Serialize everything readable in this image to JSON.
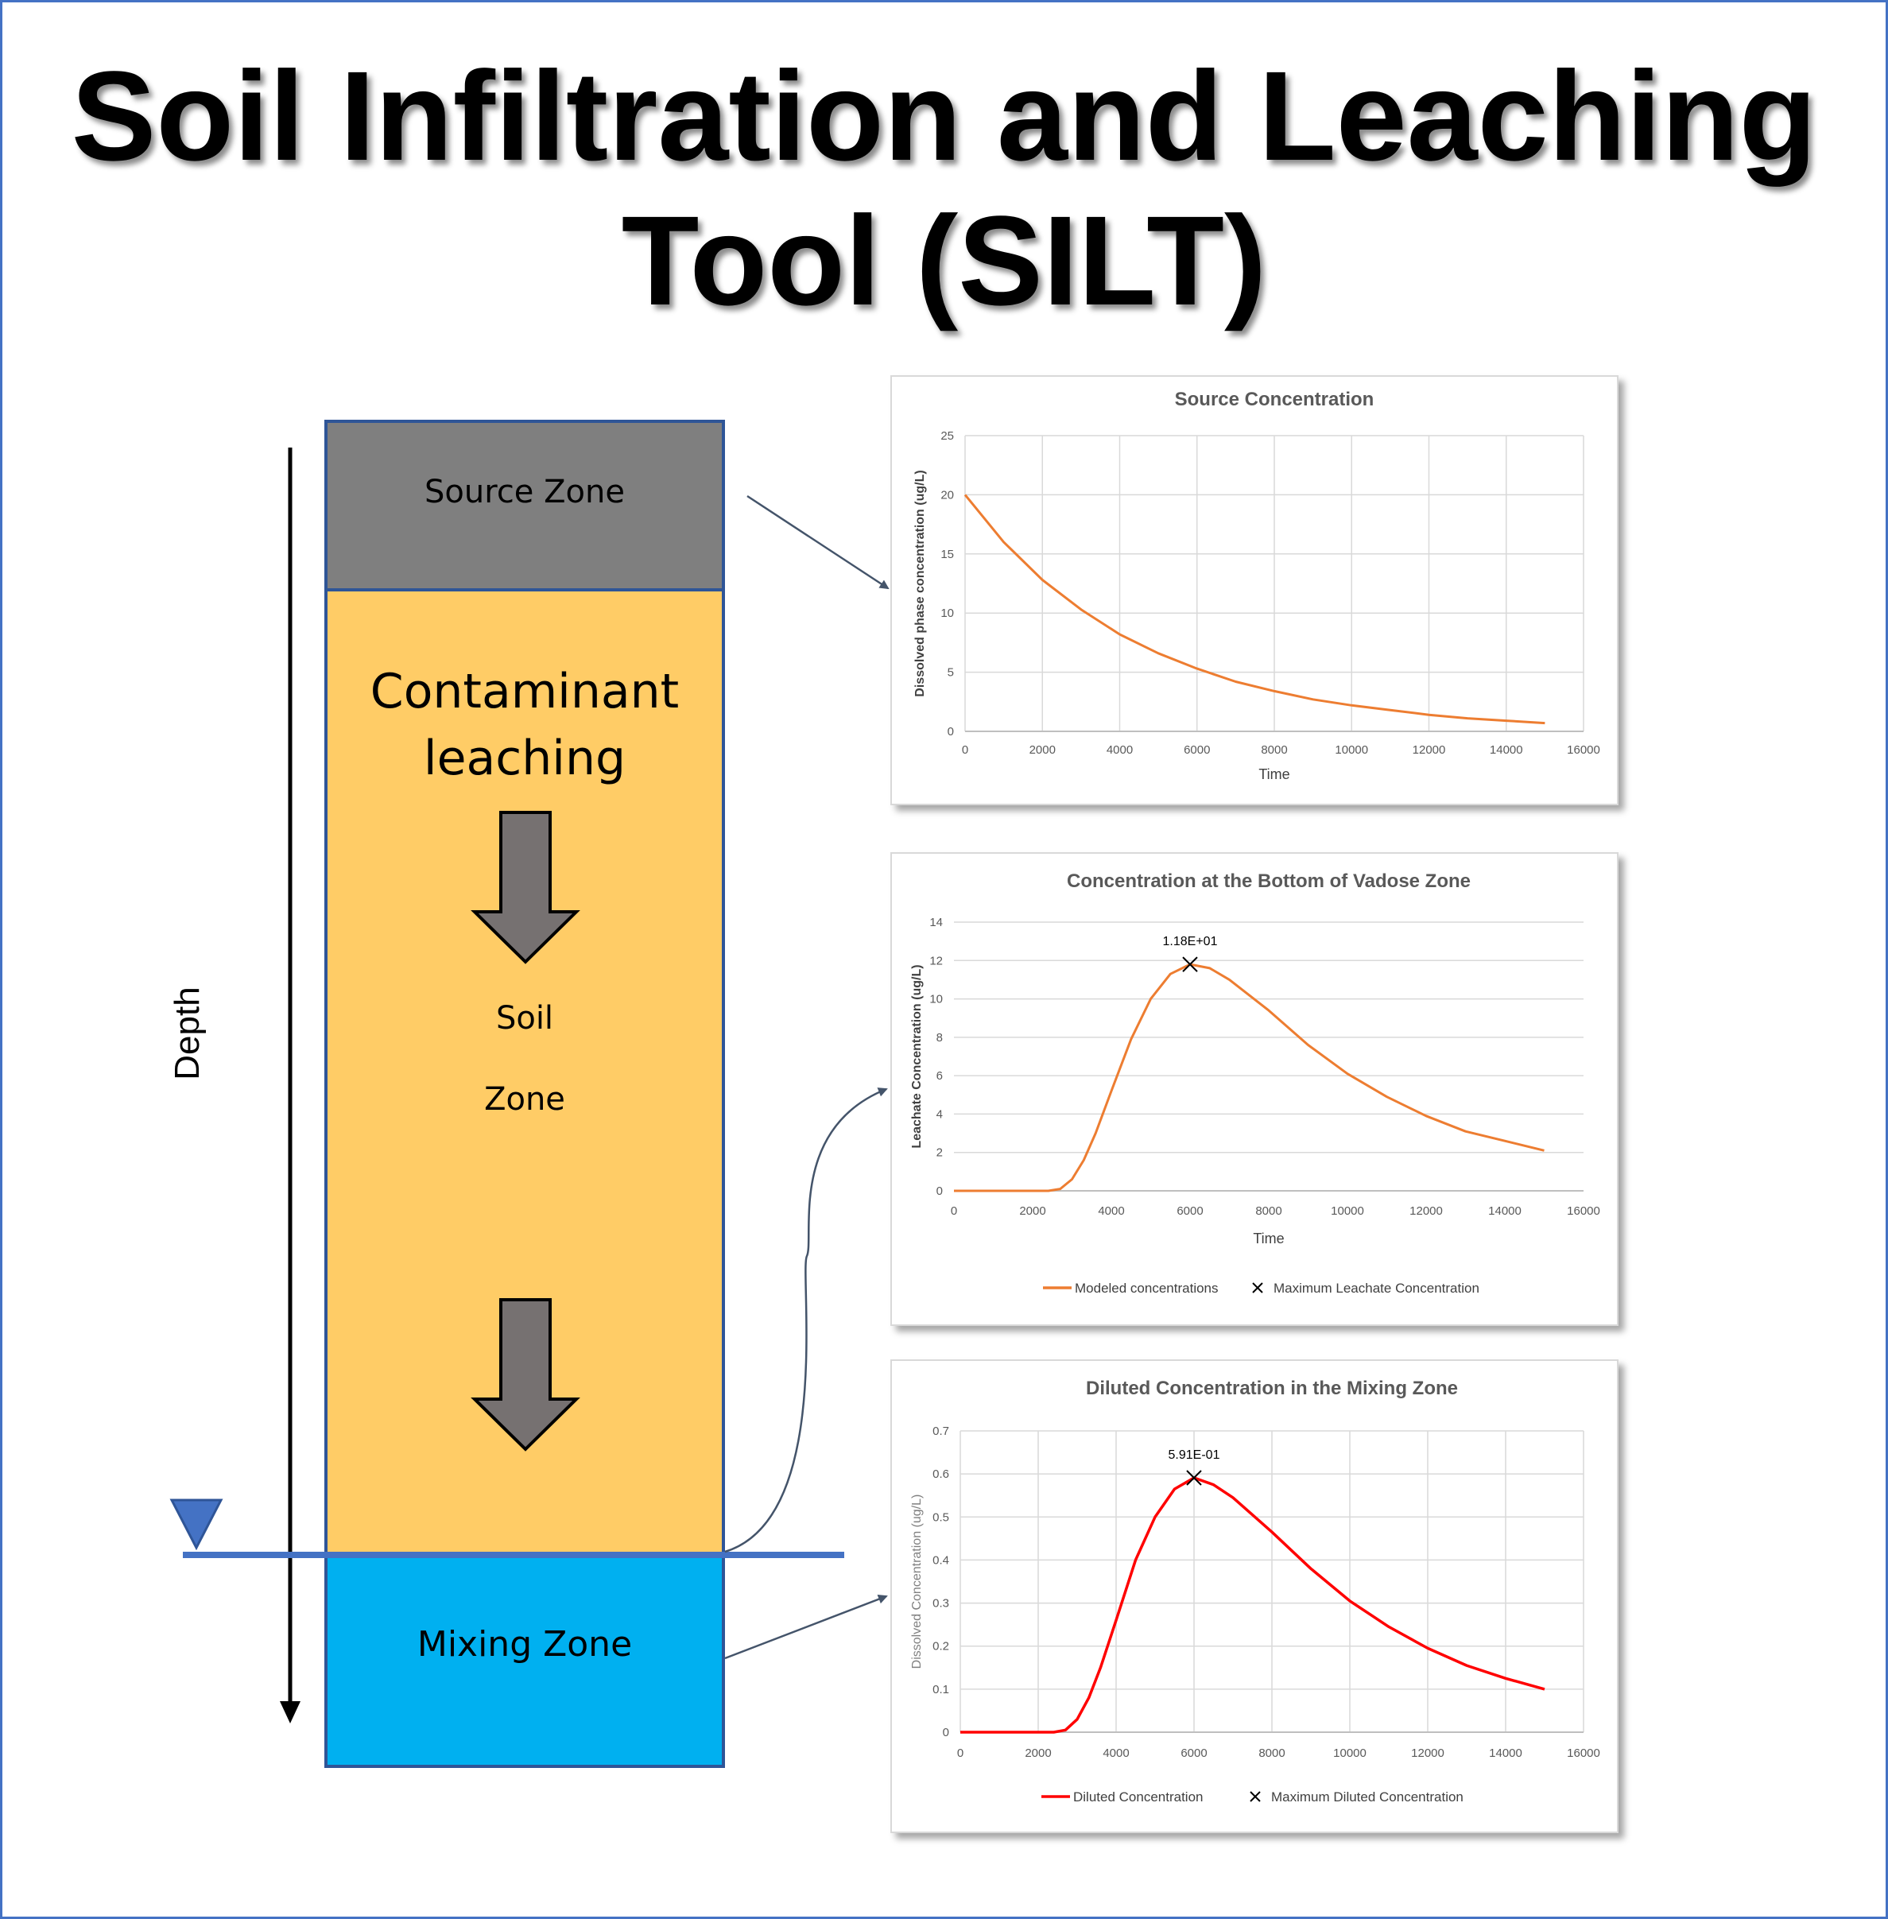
{
  "title": {
    "line1": "Soil Infiltration and Leaching",
    "line2": "Tool (SILT)"
  },
  "column": {
    "source_zone": "Source Zone",
    "leaching_line1": "Contaminant",
    "leaching_line2": "leaching",
    "soil_line1": "Soil",
    "soil_line2": "Zone",
    "mixing_zone": "Mixing Zone",
    "depth_label": "Depth"
  },
  "colors": {
    "source_zone": "#7f7f7f",
    "soil_zone": "#ffcc66",
    "mixing_zone": "#00b0f0",
    "zone_border": "#2f5597",
    "water_table": "#4472c4",
    "flow_arrow": "#767171",
    "orange_series": "#ed7d31",
    "red_series": "#ff0000"
  },
  "chart_data": [
    {
      "type": "line",
      "title": "Source Concentration",
      "xlabel": "Time",
      "ylabel": "Dissolved phase concentration (ug/L)",
      "xlim": [
        0,
        16000
      ],
      "ylim": [
        0,
        25
      ],
      "xticks": [
        0,
        2000,
        4000,
        6000,
        8000,
        10000,
        12000,
        14000,
        16000
      ],
      "yticks": [
        0,
        5,
        10,
        15,
        20,
        25
      ],
      "grid": "both",
      "series": [
        {
          "color": "#ed7d31",
          "x": [
            0,
            1000,
            2000,
            3000,
            4000,
            5000,
            6000,
            7000,
            8000,
            9000,
            10000,
            11000,
            12000,
            13000,
            14000,
            15000
          ],
          "y": [
            20.0,
            16.0,
            12.8,
            10.3,
            8.2,
            6.6,
            5.3,
            4.2,
            3.4,
            2.7,
            2.2,
            1.8,
            1.4,
            1.1,
            0.9,
            0.7
          ]
        }
      ],
      "legend": []
    },
    {
      "type": "line",
      "title": "Concentration at the Bottom of Vadose Zone",
      "xlabel": "Time",
      "ylabel": "Leachate Concentration (ug/L)",
      "xlim": [
        0,
        16000
      ],
      "ylim": [
        0,
        14
      ],
      "xticks": [
        0,
        2000,
        4000,
        6000,
        8000,
        10000,
        12000,
        14000,
        16000
      ],
      "yticks": [
        0,
        2,
        4,
        6,
        8,
        10,
        12,
        14
      ],
      "grid": "horizontal",
      "series": [
        {
          "name": "Modeled concentrations",
          "color": "#ed7d31",
          "x": [
            0,
            1000,
            2000,
            2400,
            2700,
            3000,
            3300,
            3600,
            4000,
            4500,
            5000,
            5500,
            6000,
            6500,
            7000,
            8000,
            9000,
            10000,
            11000,
            12000,
            13000,
            14000,
            15000
          ],
          "y": [
            0,
            0,
            0,
            0,
            0.1,
            0.6,
            1.6,
            3.0,
            5.2,
            7.9,
            10.0,
            11.3,
            11.8,
            11.6,
            11.0,
            9.4,
            7.6,
            6.1,
            4.9,
            3.9,
            3.1,
            2.6,
            2.1
          ]
        }
      ],
      "marker": {
        "name": "Maximum Leachate Concentration",
        "x": 6000,
        "y": 11.8,
        "label": "1.18E+01"
      },
      "legend": [
        "Modeled concentrations",
        "Maximum Leachate Concentration"
      ],
      "legend_position": "bottom"
    },
    {
      "type": "line",
      "title": "Diluted Concentration in the Mixing Zone",
      "xlabel": "",
      "ylabel": "Dissolved Concentration (ug/L)",
      "xlim": [
        0,
        16000
      ],
      "ylim": [
        0,
        0.7
      ],
      "xticks": [
        0,
        2000,
        4000,
        6000,
        8000,
        10000,
        12000,
        14000,
        16000
      ],
      "yticks": [
        0,
        0.1,
        0.2,
        0.3,
        0.4,
        0.5,
        0.6,
        0.7
      ],
      "grid": "both",
      "series": [
        {
          "name": "Diluted Concentration",
          "color": "#ff0000",
          "x": [
            0,
            1000,
            2000,
            2400,
            2700,
            3000,
            3300,
            3600,
            4000,
            4500,
            5000,
            5500,
            6000,
            6500,
            7000,
            8000,
            9000,
            10000,
            11000,
            12000,
            13000,
            14000,
            15000
          ],
          "y": [
            0,
            0,
            0,
            0,
            0.005,
            0.03,
            0.08,
            0.15,
            0.26,
            0.4,
            0.5,
            0.565,
            0.591,
            0.575,
            0.545,
            0.465,
            0.38,
            0.305,
            0.245,
            0.195,
            0.155,
            0.125,
            0.1
          ]
        }
      ],
      "marker": {
        "name": "Maximum Diluted Concentration",
        "x": 6000,
        "y": 0.591,
        "label": "5.91E-01"
      },
      "legend": [
        "Diluted Concentration",
        "Maximum Diluted Concentration"
      ],
      "legend_position": "bottom"
    }
  ]
}
